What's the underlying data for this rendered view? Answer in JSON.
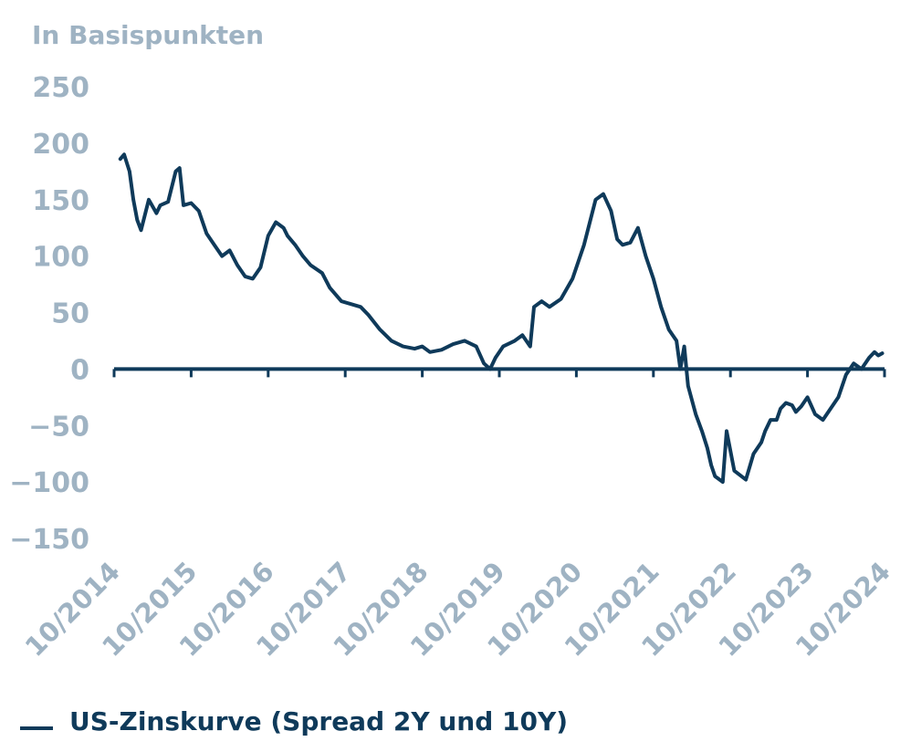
{
  "chart_data": {
    "type": "line",
    "unit_label": "In Basispunkten",
    "y_ticks": [
      "250",
      "200",
      "150",
      "100",
      "50",
      "0",
      "−50",
      "−100",
      "−150"
    ],
    "y_tick_values": [
      250,
      200,
      150,
      100,
      50,
      0,
      -50,
      -100,
      -150
    ],
    "ylim": [
      -150,
      250
    ],
    "xlim": [
      2014.75,
      2024.75
    ],
    "x_ticks": [
      "10/2014",
      "10/2015",
      "10/2016",
      "10/2017",
      "10/2018",
      "10/2019",
      "10/2020",
      "10/2021",
      "10/2022",
      "10/2023",
      "10/2024"
    ],
    "x_tick_values": [
      2014.75,
      2015.75,
      2016.75,
      2017.75,
      2018.75,
      2019.75,
      2020.75,
      2021.75,
      2022.75,
      2023.75,
      2024.75
    ],
    "grid": false,
    "legend_position": "bottom-left",
    "colors": {
      "line": "#0f3a5a",
      "axis": "#0f3a5a",
      "labels": "#9fb3c3"
    },
    "series": [
      {
        "name": "US-Zinskurve (Spread 2Y und 10Y)",
        "x": [
          2014.83,
          2014.88,
          2014.95,
          2015.0,
          2015.05,
          2015.1,
          2015.2,
          2015.3,
          2015.35,
          2015.45,
          2015.55,
          2015.6,
          2015.65,
          2015.75,
          2015.85,
          2015.95,
          2016.05,
          2016.15,
          2016.25,
          2016.35,
          2016.45,
          2016.55,
          2016.65,
          2016.75,
          2016.85,
          2016.95,
          2017.0,
          2017.1,
          2017.2,
          2017.3,
          2017.45,
          2017.55,
          2017.7,
          2017.8,
          2017.95,
          2018.05,
          2018.2,
          2018.35,
          2018.5,
          2018.65,
          2018.75,
          2018.85,
          2019.0,
          2019.15,
          2019.3,
          2019.45,
          2019.55,
          2019.63,
          2019.7,
          2019.8,
          2019.95,
          2020.05,
          2020.15,
          2020.2,
          2020.3,
          2020.4,
          2020.55,
          2020.7,
          2020.85,
          2021.0,
          2021.1,
          2021.2,
          2021.28,
          2021.35,
          2021.45,
          2021.55,
          2021.65,
          2021.75,
          2021.85,
          2021.95,
          2022.05,
          2022.1,
          2022.15,
          2022.2,
          2022.3,
          2022.38,
          2022.45,
          2022.5,
          2022.55,
          2022.65,
          2022.7,
          2022.8,
          2022.95,
          2023.05,
          2023.15,
          2023.2,
          2023.27,
          2023.35,
          2023.4,
          2023.47,
          2023.55,
          2023.6,
          2023.67,
          2023.75,
          2023.85,
          2023.95,
          2024.05,
          2024.15,
          2024.25,
          2024.35,
          2024.45,
          2024.55,
          2024.62,
          2024.67,
          2024.72
        ],
        "values": [
          186,
          190,
          175,
          150,
          132,
          123,
          150,
          138,
          145,
          148,
          175,
          178,
          145,
          147,
          140,
          120,
          110,
          100,
          105,
          92,
          82,
          80,
          90,
          118,
          130,
          125,
          118,
          110,
          100,
          92,
          85,
          72,
          60,
          58,
          55,
          48,
          35,
          25,
          20,
          18,
          20,
          15,
          17,
          22,
          25,
          20,
          5,
          0,
          10,
          20,
          25,
          30,
          20,
          55,
          60,
          55,
          62,
          80,
          110,
          150,
          155,
          140,
          115,
          110,
          112,
          125,
          100,
          80,
          55,
          35,
          25,
          0,
          20,
          -15,
          -40,
          -55,
          -70,
          -85,
          -95,
          -100,
          -55,
          -90,
          -98,
          -75,
          -65,
          -55,
          -45,
          -45,
          -35,
          -30,
          -32,
          -38,
          -33,
          -25,
          -40,
          -45,
          -35,
          -25,
          -5,
          5,
          0,
          10,
          15,
          12,
          14
        ]
      }
    ]
  }
}
